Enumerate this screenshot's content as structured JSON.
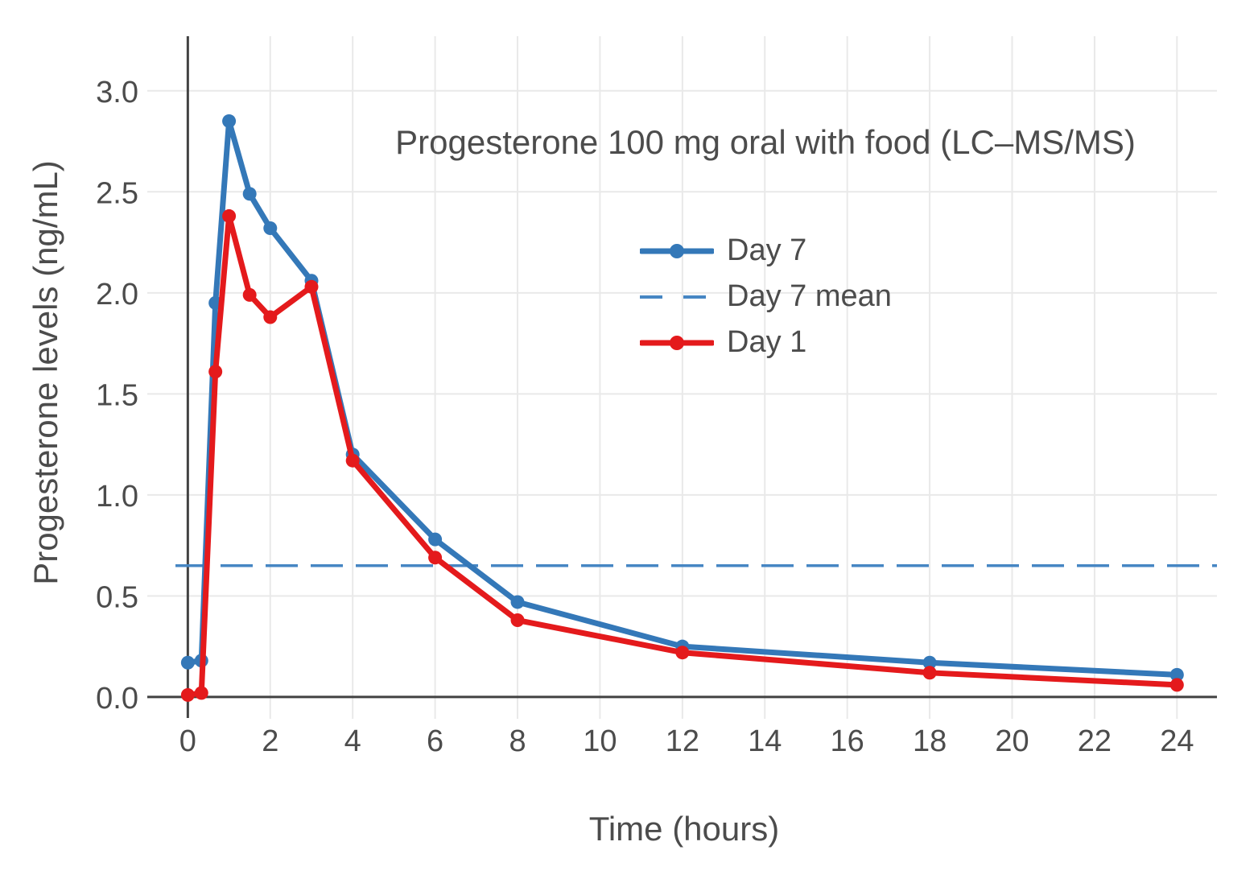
{
  "chart_data": {
    "type": "line",
    "title": "Progesterone 100 mg oral with food (LC–MS/MS)",
    "xlabel": "Time (hours)",
    "ylabel": "Progesterone levels (ng/mL)",
    "x": [
      0,
      0.33,
      0.67,
      1,
      1.5,
      2,
      3,
      4,
      6,
      8,
      12,
      18,
      24
    ],
    "series": [
      {
        "name": "Day 7",
        "style": "solid line with circle markers",
        "color": "#3478b8",
        "values": [
          0.17,
          0.18,
          1.95,
          2.85,
          2.49,
          2.32,
          2.06,
          1.2,
          0.78,
          0.47,
          0.25,
          0.17,
          0.11
        ]
      },
      {
        "name": "Day 7 mean",
        "style": "horizontal dashed line",
        "color": "#4686c3",
        "value": 0.65
      },
      {
        "name": "Day 1",
        "style": "solid line with circle markers",
        "color": "#e41a1c",
        "values": [
          0.01,
          0.02,
          1.61,
          2.38,
          1.99,
          1.88,
          2.03,
          1.17,
          0.69,
          0.38,
          0.22,
          0.12,
          0.06
        ]
      }
    ],
    "xticks": [
      0,
      2,
      4,
      6,
      8,
      10,
      12,
      14,
      16,
      18,
      20,
      22,
      24
    ],
    "yticks": [
      "0.0",
      "0.5",
      "1.0",
      "1.5",
      "2.0",
      "2.5",
      "3.0"
    ],
    "xlim": [
      -0.3,
      24.97
    ],
    "ylim": [
      -0.06,
      3.27
    ],
    "grid": true,
    "legend_position": "inside, upper center-right"
  },
  "colors": {
    "grid": "#e9e9e9",
    "axis": "#424242",
    "text": "#4c4c4c",
    "background": "#ffffff"
  }
}
